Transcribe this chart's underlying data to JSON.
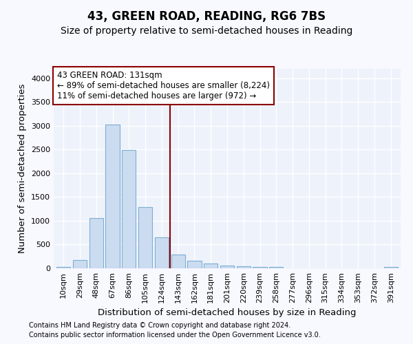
{
  "title": "43, GREEN ROAD, READING, RG6 7BS",
  "subtitle": "Size of property relative to semi-detached houses in Reading",
  "xlabel": "Distribution of semi-detached houses by size in Reading",
  "ylabel": "Number of semi-detached properties",
  "footnote1": "Contains HM Land Registry data © Crown copyright and database right 2024.",
  "footnote2": "Contains public sector information licensed under the Open Government Licence v3.0.",
  "categories": [
    "10sqm",
    "29sqm",
    "48sqm",
    "67sqm",
    "86sqm",
    "105sqm",
    "124sqm",
    "143sqm",
    "162sqm",
    "181sqm",
    "201sqm",
    "220sqm",
    "239sqm",
    "258sqm",
    "277sqm",
    "296sqm",
    "315sqm",
    "334sqm",
    "353sqm",
    "372sqm",
    "391sqm"
  ],
  "values": [
    30,
    175,
    1055,
    3020,
    2490,
    1285,
    650,
    290,
    160,
    95,
    60,
    40,
    35,
    28,
    5,
    3,
    2,
    1,
    0,
    0,
    30
  ],
  "bar_color": "#ccdcf0",
  "bar_edge_color": "#7aaed4",
  "marker_bin_index": 6,
  "marker_line_color": "#8b0000",
  "annotation_text_line1": "43 GREEN ROAD: 131sqm",
  "annotation_text_line2": "← 89% of semi-detached houses are smaller (8,224)",
  "annotation_text_line3": "11% of semi-detached houses are larger (972) →",
  "annotation_box_color": "#ffffff",
  "annotation_box_edge_color": "#8b0000",
  "ylim": [
    0,
    4200
  ],
  "yticks": [
    0,
    500,
    1000,
    1500,
    2000,
    2500,
    3000,
    3500,
    4000
  ],
  "background_color": "#f8f8ff",
  "plot_background_color": "#eef2fb",
  "grid_color": "#ffffff",
  "title_fontsize": 12,
  "subtitle_fontsize": 10,
  "axis_label_fontsize": 9.5,
  "tick_fontsize": 8,
  "annotation_fontsize": 8.5,
  "footnote_fontsize": 7
}
